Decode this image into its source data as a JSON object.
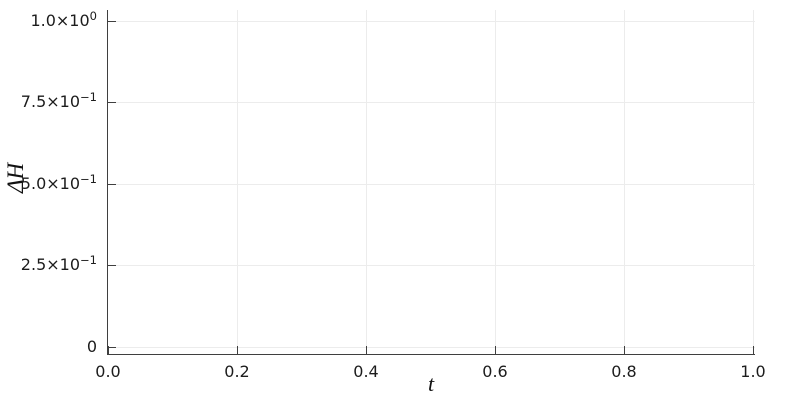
{
  "chart_data": {
    "type": "line",
    "title": "",
    "xlabel": "t",
    "ylabel": "ΔH",
    "xlim": [
      0.0,
      1.0
    ],
    "ylim": [
      0.0,
      1.0
    ],
    "grid": true,
    "legend": "none",
    "series": [],
    "x_ticks": [
      {
        "value": 0.0,
        "label": "0.0"
      },
      {
        "value": 0.2,
        "label": "0.2"
      },
      {
        "value": 0.4,
        "label": "0.4"
      },
      {
        "value": 0.6,
        "label": "0.6"
      },
      {
        "value": 0.8,
        "label": "0.8"
      },
      {
        "value": 1.0,
        "label": "1.0"
      }
    ],
    "y_ticks": [
      {
        "value": 0.0,
        "base": "0",
        "exp": ""
      },
      {
        "value": 0.25,
        "base": "2.5×10",
        "exp": "−1"
      },
      {
        "value": 0.5,
        "base": "5.0×10",
        "exp": "−1"
      },
      {
        "value": 0.75,
        "base": "7.5×10",
        "exp": "−1"
      },
      {
        "value": 1.0,
        "base": "1.0×10",
        "exp": "0"
      }
    ],
    "frame": {
      "spines": [
        "left",
        "bottom"
      ],
      "ticks_direction": "in"
    },
    "colors": {
      "background": "#ffffff",
      "spine": "#3f3f3f",
      "grid": "#ececec",
      "tick_text": "#1c1c1c",
      "label_text": "#111111"
    }
  }
}
